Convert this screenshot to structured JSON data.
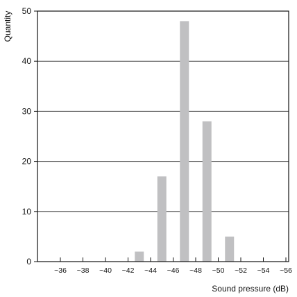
{
  "chart_data": {
    "type": "bar",
    "title": "",
    "xlabel": "Sound pressure (dB)",
    "ylabel": "Quantity",
    "ylim": [
      0,
      50
    ],
    "yticks": [
      0,
      10,
      20,
      30,
      40,
      50
    ],
    "grid": "horizontal",
    "legend": "none",
    "x_tick_labels": [
      "~36",
      "~38",
      "~40",
      "~42",
      "~44",
      "~46",
      "~48",
      "~50",
      "~52",
      "~54",
      "~56"
    ],
    "bars": [
      {
        "range": "~42–~44",
        "value": 2
      },
      {
        "range": "~44–~46",
        "value": 17
      },
      {
        "range": "~46–~48",
        "value": 48
      },
      {
        "range": "~48–~50",
        "value": 28
      },
      {
        "range": "~50–~52",
        "value": 5
      }
    ],
    "colors": {
      "bar": "#c0c0c2",
      "frame": "#111111",
      "grid": "#444444"
    }
  }
}
